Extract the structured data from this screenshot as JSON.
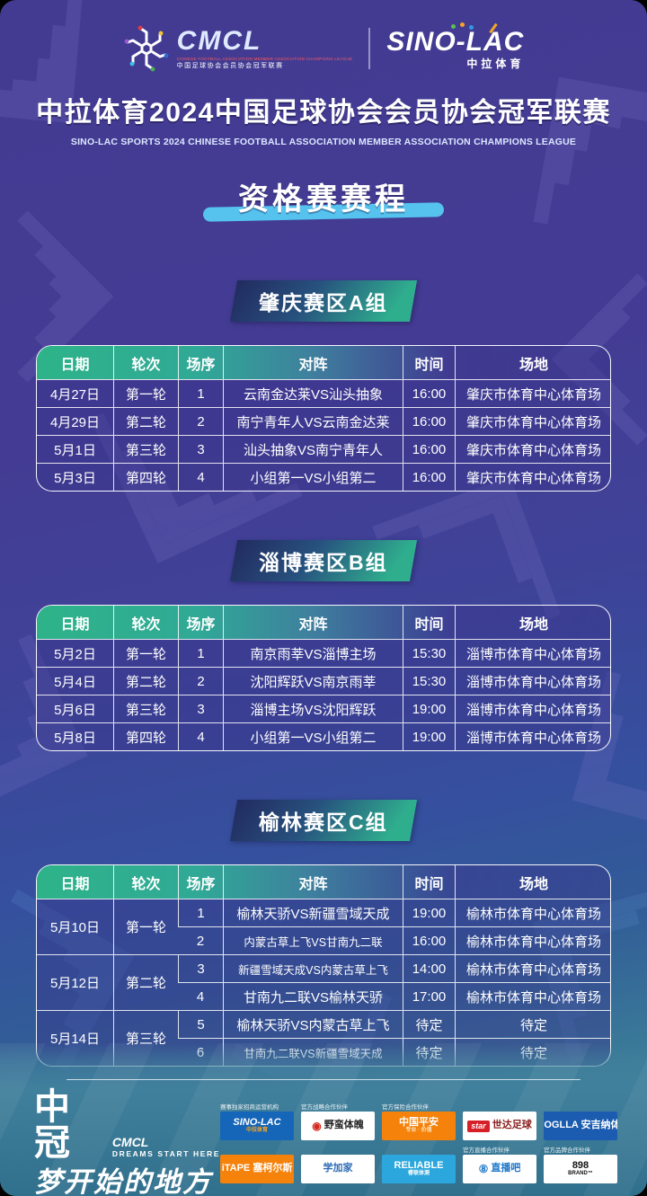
{
  "brand": {
    "cmcl": {
      "name": "CMCL",
      "sub_en": "CHINESE FOOTBALL ASSOCIATION MEMBER ASSOCIATION CHAMPIONS LEAGUE",
      "sub_cn": "中国足球协会会员协会冠军联赛"
    },
    "sino_lac": {
      "name": "SINO-LAC",
      "sub": "中拉体育"
    }
  },
  "title": {
    "main": "中拉体育2024中国足球协会会员协会冠军联赛",
    "sub": "SINO-LAC SPORTS 2024 CHINESE FOOTBALL ASSOCIATION MEMBER ASSOCIATION CHAMPIONS LEAGUE",
    "section": "资格赛赛程"
  },
  "colors": {
    "background": "#433b92",
    "header_teal": "#2eb389",
    "banner_teal": "#2fae8e",
    "section_bar_blue": "#55c3ee",
    "footer_teal": "#41809c"
  },
  "table_headers": [
    "日期",
    "轮次",
    "场序",
    "对阵",
    "时间",
    "场地"
  ],
  "groups": [
    {
      "name": "肇庆赛区A组",
      "rows": [
        {
          "date": "4月27日",
          "round": "第一轮",
          "no": "1",
          "match": "云南金达莱VS汕头抽象",
          "time": "16:00",
          "venue": "肇庆市体育中心体育场"
        },
        {
          "date": "4月29日",
          "round": "第二轮",
          "no": "2",
          "match": "南宁青年人VS云南金达莱",
          "time": "16:00",
          "venue": "肇庆市体育中心体育场"
        },
        {
          "date": "5月1日",
          "round": "第三轮",
          "no": "3",
          "match": "汕头抽象VS南宁青年人",
          "time": "16:00",
          "venue": "肇庆市体育中心体育场"
        },
        {
          "date": "5月3日",
          "round": "第四轮",
          "no": "4",
          "match": "小组第一VS小组第二",
          "time": "16:00",
          "venue": "肇庆市体育中心体育场"
        }
      ]
    },
    {
      "name": "淄博赛区B组",
      "rows": [
        {
          "date": "5月2日",
          "round": "第一轮",
          "no": "1",
          "match": "南京雨莘VS淄博主场",
          "time": "15:30",
          "venue": "淄博市体育中心体育场"
        },
        {
          "date": "5月4日",
          "round": "第二轮",
          "no": "2",
          "match": "沈阳辉跃VS南京雨莘",
          "time": "15:30",
          "venue": "淄博市体育中心体育场"
        },
        {
          "date": "5月6日",
          "round": "第三轮",
          "no": "3",
          "match": "淄博主场VS沈阳辉跃",
          "time": "19:00",
          "venue": "淄博市体育中心体育场"
        },
        {
          "date": "5月8日",
          "round": "第四轮",
          "no": "4",
          "match": "小组第一VS小组第二",
          "time": "19:00",
          "venue": "淄博市体育中心体育场"
        }
      ]
    },
    {
      "name": "榆林赛区C组",
      "rows": [
        {
          "date": "5月10日",
          "date_span": 2,
          "round": "第一轮",
          "round_span": 2,
          "no": "1",
          "match": "榆林天骄VS新疆雪域天成",
          "time": "19:00",
          "venue": "榆林市体育中心体育场"
        },
        {
          "no": "2",
          "match": "内蒙古草上飞VS甘南九二联",
          "time": "16:00",
          "venue": "榆林市体育中心体育场"
        },
        {
          "date": "5月12日",
          "date_span": 2,
          "round": "第二轮",
          "round_span": 2,
          "no": "3",
          "match": "新疆雪域天成VS内蒙古草上飞",
          "time": "14:00",
          "venue": "榆林市体育中心体育场"
        },
        {
          "no": "4",
          "match": "甘南九二联VS榆林天骄",
          "time": "17:00",
          "venue": "榆林市体育中心体育场"
        },
        {
          "date": "5月14日",
          "date_span": 2,
          "round": "第三轮",
          "round_span": 2,
          "no": "5",
          "match": "榆林天骄VS内蒙古草上飞",
          "time": "待定",
          "venue": "待定"
        },
        {
          "no": "6",
          "match": "甘南九二联VS新疆雪域天成",
          "time": "待定",
          "venue": "待定"
        }
      ]
    }
  ],
  "footer": {
    "slogan_cn": "中冠",
    "slogan_cmcl": "CMCL",
    "slogan_en": "DREAMS START HERE",
    "slogan_cn2": "梦开始的地方",
    "sponsor_rows": [
      [
        {
          "label": "赛事独家招商运营机构",
          "bg": "#1565b8",
          "fg": "#ffffff",
          "main": "SINO-LAC",
          "italic": true,
          "sub": "中拉体育",
          "subColor": "#f6a623"
        },
        {
          "label": "官方战略合作伙伴",
          "bg": "#ffffff",
          "fg": "#222222",
          "prefix": "◉",
          "prefixColor": "#d42b1e",
          "main": "野蛮体魄"
        },
        {
          "label": "官方保险合作伙伴",
          "bg": "#f5820b",
          "fg": "#ffffff",
          "main": "中国平安",
          "sub": "专业 · 价值",
          "subColor": "#ffe3bd"
        },
        {
          "label": "",
          "bg": "#ffffff",
          "fg": "#8a1b1b",
          "badge": "star",
          "badgeBg": "#d61f26",
          "badgeFg": "#ffffff",
          "main": "世达足球"
        },
        {
          "label": "",
          "bg": "#1b5cb0",
          "fg": "#ffffff",
          "prefix": "▲",
          "prefixColor": "#ffffff",
          "main": "OGLLA 安吉纳体育"
        }
      ],
      [
        {
          "label": "",
          "bg": "#f5820b",
          "fg": "#ffffff",
          "main": "iTAPE 塞柯尔斯"
        },
        {
          "label": "",
          "bg": "#ffffff",
          "fg": "#2b6bb5",
          "main": "学加家"
        },
        {
          "label": "",
          "bg": "#2ba7dd",
          "fg": "#ffffff",
          "main": "RELIABLE",
          "sub": "睿联体测",
          "subColor": "#ffffff"
        },
        {
          "label": "官方直播合作伙伴",
          "bg": "#ffffff",
          "fg": "#1f78c8",
          "prefix": "⑧",
          "prefixColor": "#1f78c8",
          "main": "直播吧"
        },
        {
          "label": "官方品牌合作伙伴",
          "bg": "#ffffff",
          "fg": "#111111",
          "main": "898",
          "sub": "BRAND™",
          "subColor": "#111111"
        }
      ]
    ]
  }
}
